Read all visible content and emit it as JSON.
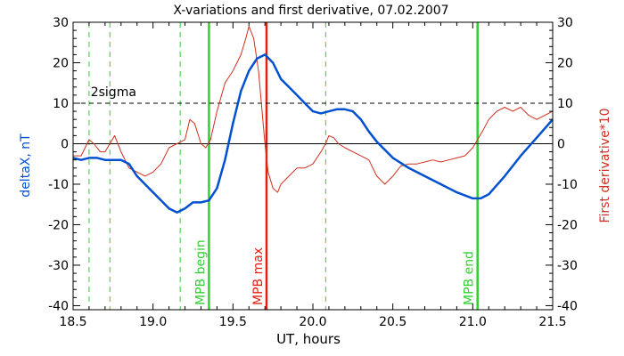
{
  "chart_data": {
    "type": "line",
    "title": "X-variations and first derivative, 07.02.2007",
    "xlabel": "UT, hours",
    "ylabel_left": "deltaX, nT",
    "ylabel_right": "First derivative*10",
    "xlim": [
      18.5,
      21.5
    ],
    "ylim": [
      -41,
      30
    ],
    "x_ticks": [
      "18.5",
      "19.0",
      "19.5",
      "20.0",
      "20.5",
      "21.0",
      "21.5"
    ],
    "x_tick_values": [
      18.5,
      19.0,
      19.5,
      20.0,
      20.5,
      21.0,
      21.5
    ],
    "y_ticks": [
      "30",
      "20",
      "10",
      "0",
      "-10",
      "-20",
      "-30",
      "-40"
    ],
    "y_tick_values": [
      30,
      20,
      10,
      0,
      -10,
      -20,
      -30,
      -40
    ],
    "series": [
      {
        "color": "#0050d0",
        "x": [
          18.5,
          18.55,
          18.6,
          18.65,
          18.7,
          18.75,
          18.8,
          18.85,
          18.9,
          19.0,
          19.1,
          19.15,
          19.2,
          19.25,
          19.3,
          19.35,
          19.4,
          19.45,
          19.5,
          19.55,
          19.6,
          19.65,
          19.7,
          19.75,
          19.8,
          19.85,
          19.9,
          19.95,
          20.0,
          20.05,
          20.1,
          20.15,
          20.2,
          20.25,
          20.3,
          20.35,
          20.4,
          20.5,
          20.6,
          20.7,
          20.8,
          20.9,
          21.0,
          21.05,
          21.1,
          21.2,
          21.3,
          21.4,
          21.5
        ],
        "y": [
          -3.5,
          -4.0,
          -3.5,
          -3.5,
          -4.0,
          -4.0,
          -4.0,
          -5.0,
          -8.0,
          -12.0,
          -16.0,
          -17.0,
          -16.0,
          -14.5,
          -14.5,
          -14.0,
          -11.0,
          -4.0,
          5.0,
          13.0,
          18.0,
          21.0,
          22.0,
          20.0,
          16.0,
          14.0,
          12.0,
          10.0,
          8.0,
          7.5,
          8.0,
          8.5,
          8.5,
          8.0,
          6.0,
          3.0,
          0.5,
          -3.5,
          -6.0,
          -8.0,
          -10.0,
          -12.0,
          -13.5,
          -13.5,
          -12.5,
          -8.0,
          -3.0,
          1.5,
          6.0
        ]
      },
      {
        "color": "#d03020",
        "x": [
          18.5,
          18.55,
          18.6,
          18.63,
          18.67,
          18.7,
          18.73,
          18.76,
          18.8,
          18.85,
          18.9,
          18.95,
          19.0,
          19.05,
          19.1,
          19.15,
          19.2,
          19.23,
          19.26,
          19.3,
          19.33,
          19.36,
          19.4,
          19.45,
          19.5,
          19.55,
          19.58,
          19.6,
          19.63,
          19.66,
          19.68,
          19.7,
          19.72,
          19.75,
          19.78,
          19.8,
          19.85,
          19.9,
          19.95,
          20.0,
          20.05,
          20.08,
          20.1,
          20.13,
          20.16,
          20.2,
          20.25,
          20.3,
          20.35,
          20.4,
          20.45,
          20.5,
          20.55,
          20.6,
          20.65,
          20.7,
          20.75,
          20.8,
          20.85,
          20.9,
          20.95,
          21.0,
          21.03,
          21.06,
          21.1,
          21.15,
          21.2,
          21.25,
          21.3,
          21.35,
          21.4,
          21.45,
          21.5
        ],
        "y": [
          -3.0,
          -3.0,
          1.0,
          0.0,
          -2.0,
          -2.0,
          0.0,
          2.0,
          -2.0,
          -6.0,
          -7.0,
          -8.0,
          -7.0,
          -5.0,
          -1.0,
          0.0,
          1.0,
          6.0,
          5.0,
          0.0,
          -1.0,
          1.0,
          8.0,
          15.0,
          18.0,
          22.0,
          26.0,
          29.0,
          26.0,
          18.0,
          9.0,
          0.0,
          -7.0,
          -11.0,
          -12.0,
          -10.0,
          -8.0,
          -6.0,
          -6.0,
          -5.0,
          -2.0,
          0.0,
          2.0,
          1.5,
          0.0,
          -1.0,
          -2.0,
          -3.0,
          -4.0,
          -8.0,
          -10.0,
          -8.0,
          -5.5,
          -5.0,
          -5.0,
          -4.5,
          -4.0,
          -4.5,
          -4.0,
          -3.5,
          -3.0,
          -1.0,
          1.0,
          3.0,
          6.0,
          8.0,
          9.0,
          8.0,
          9.0,
          7.0,
          6.0,
          7.0,
          8.0
        ]
      }
    ],
    "hlines": [
      {
        "y": 10,
        "style": "dashed",
        "color": "#000000",
        "label": "2sigma"
      },
      {
        "y": 0,
        "style": "solid",
        "color": "#000000"
      }
    ],
    "vlines": [
      {
        "x": 18.6,
        "style": "dashed",
        "color": "#30d030"
      },
      {
        "x": 18.73,
        "style": "dashed",
        "color": "#30d030"
      },
      {
        "x": 19.17,
        "style": "dashed",
        "color": "#30d030"
      },
      {
        "x": 20.08,
        "style": "dashed",
        "color": "#30d030"
      },
      {
        "x": 19.35,
        "style": "solid",
        "color": "#30d030",
        "label": "MPB begin"
      },
      {
        "x": 19.71,
        "style": "solid",
        "color": "#e02010",
        "label": "MPB max"
      },
      {
        "x": 21.03,
        "style": "solid",
        "color": "#30d030",
        "label": "MPB end"
      }
    ],
    "grid": false
  }
}
